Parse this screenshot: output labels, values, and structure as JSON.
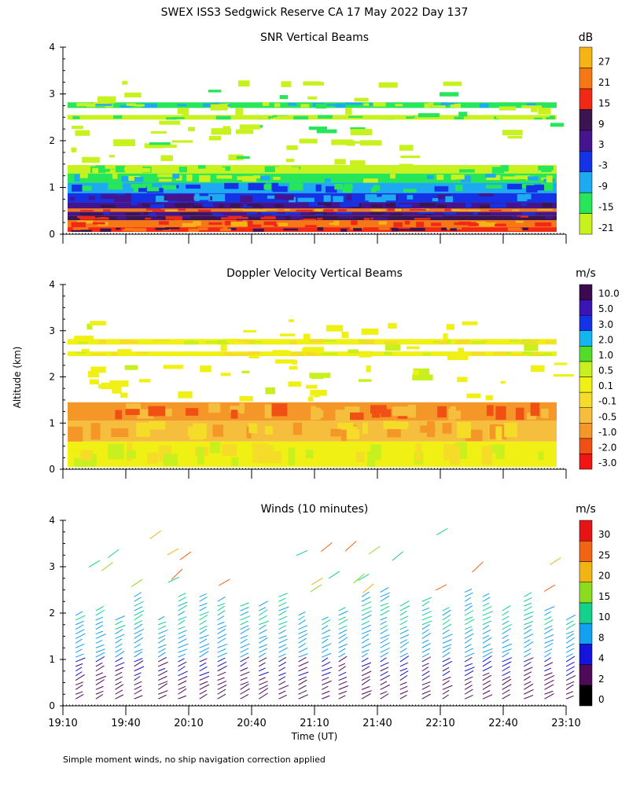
{
  "title": "SWEX ISS3 Sedgwick Reserve CA  17 May 2022 Day 137",
  "footer_note": "Simple moment winds, no ship navigation correction applied",
  "chart_data": [
    {
      "type": "heatmap",
      "title": "SNR Vertical Beams",
      "ylabel": "",
      "ylim": [
        0,
        4
      ],
      "yticks": [
        "0",
        "1",
        "2",
        "3",
        "4"
      ],
      "colorbar": {
        "unit": "dB",
        "colors": [
          "#c8f21e",
          "#28e65a",
          "#1eaaf0",
          "#1432e6",
          "#46148c",
          "#3c1450",
          "#f02814",
          "#f57814",
          "#f5b414"
        ],
        "labels": [
          "-21",
          "-15",
          "-9",
          "-3",
          "3",
          "9",
          "15",
          "21",
          "27"
        ]
      },
      "bands": [
        {
          "from": 0.05,
          "to": 0.15,
          "level": 6
        },
        {
          "from": 0.15,
          "to": 0.3,
          "level": 7
        },
        {
          "from": 0.3,
          "to": 0.4,
          "level": 5
        },
        {
          "from": 0.4,
          "to": 0.48,
          "level": 4
        },
        {
          "from": 0.48,
          "to": 0.55,
          "level": 7
        },
        {
          "from": 0.55,
          "to": 0.68,
          "level": 4
        },
        {
          "from": 0.68,
          "to": 0.88,
          "level": 3
        },
        {
          "from": 0.88,
          "to": 1.1,
          "level": 2
        },
        {
          "from": 1.1,
          "to": 1.3,
          "level": 1
        },
        {
          "from": 1.3,
          "to": 1.48,
          "level": 0
        },
        {
          "from": 2.45,
          "to": 2.55,
          "level": 0
        },
        {
          "from": 2.7,
          "to": 2.82,
          "level": 1
        }
      ]
    },
    {
      "type": "heatmap",
      "title": "Doppler Velocity Vertical Beams",
      "ylabel": "Altitude (km)",
      "ylim": [
        0,
        4
      ],
      "yticks": [
        "0",
        "1",
        "2",
        "3",
        "4"
      ],
      "colorbar": {
        "unit": "m/s",
        "colors": [
          "#f01414",
          "#f05014",
          "#f59628",
          "#f5be3c",
          "#f5dc28",
          "#f0f014",
          "#c8f01e",
          "#50dc28",
          "#14b4f0",
          "#1432e6",
          "#3c14b4",
          "#3c0a50"
        ],
        "labels": [
          "-3.0",
          "-2.0",
          "-1.0",
          "-0.5",
          "-0.1",
          "0.1",
          "0.5",
          "1.0",
          "2.0",
          "3.0",
          "5.0",
          "10.0"
        ]
      },
      "bands": [
        {
          "from": 0.05,
          "to": 0.6,
          "level": 5
        },
        {
          "from": 0.6,
          "to": 1.05,
          "level": 3
        },
        {
          "from": 1.05,
          "to": 1.45,
          "level": 2
        },
        {
          "from": 2.45,
          "to": 2.55,
          "level": 5
        },
        {
          "from": 2.7,
          "to": 2.82,
          "level": 5
        }
      ]
    },
    {
      "type": "scatter",
      "title": "Winds (10 minutes)",
      "xlabel": "Time (UT)",
      "ylim": [
        0,
        4
      ],
      "yticks": [
        "0",
        "1",
        "2",
        "3",
        "4"
      ],
      "xticks": [
        "19:10",
        "19:40",
        "20:10",
        "20:40",
        "21:10",
        "21:40",
        "22:10",
        "22:40",
        "23:10"
      ],
      "colorbar": {
        "unit": "m/s",
        "colors": [
          "#000000",
          "#500a5a",
          "#1414dc",
          "#14a0f0",
          "#14d28c",
          "#8cdc1e",
          "#f0b414",
          "#f06414",
          "#e61414"
        ],
        "labels": [
          "0",
          "2",
          "4",
          "8",
          "10",
          "15",
          "20",
          "25",
          "30"
        ]
      }
    }
  ]
}
